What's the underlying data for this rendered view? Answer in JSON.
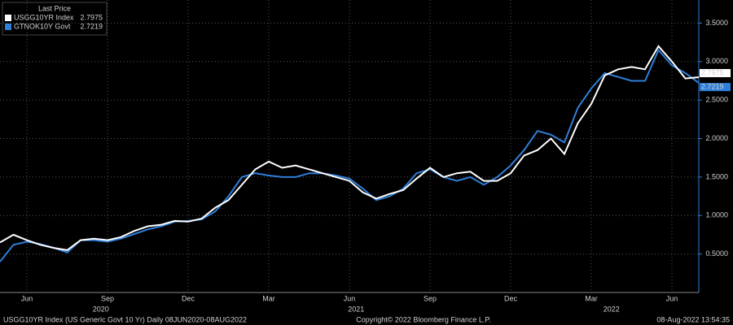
{
  "chart_data": {
    "type": "line",
    "legend_title": "Last Price",
    "categories": [
      null,
      null,
      "Jun",
      null,
      null,
      null,
      null,
      null,
      "Sep",
      null,
      null,
      null,
      null,
      null,
      "Dec",
      null,
      null,
      null,
      null,
      null,
      "Mar",
      null,
      null,
      null,
      null,
      null,
      "Jun",
      null,
      null,
      null,
      null,
      null,
      "Sep",
      null,
      null,
      null,
      null,
      null,
      "Dec",
      null,
      null,
      null,
      null,
      null,
      "Mar",
      null,
      null,
      null,
      null,
      null,
      "Jun",
      null,
      null
    ],
    "years": [
      "2020",
      "2021",
      "2022"
    ],
    "series": [
      {
        "name": "USGG10YR Index",
        "color": "#ffffff",
        "values": [
          0.65,
          0.75,
          0.68,
          0.62,
          0.58,
          0.55,
          0.68,
          0.7,
          0.68,
          0.72,
          0.8,
          0.86,
          0.88,
          0.93,
          0.92,
          0.96,
          1.1,
          1.2,
          1.4,
          1.6,
          1.7,
          1.62,
          1.65,
          1.6,
          1.55,
          1.5,
          1.45,
          1.3,
          1.22,
          1.28,
          1.33,
          1.48,
          1.62,
          1.5,
          1.55,
          1.57,
          1.45,
          1.45,
          1.55,
          1.78,
          1.85,
          2.0,
          1.8,
          2.2,
          2.45,
          2.82,
          2.9,
          2.93,
          2.9,
          3.2,
          3.0,
          2.78,
          2.7975
        ]
      },
      {
        "name": "GTNOK10Y Govt",
        "color": "#2e7fd9",
        "values": [
          0.4,
          0.62,
          0.66,
          0.63,
          0.58,
          0.52,
          0.68,
          0.68,
          0.66,
          0.7,
          0.76,
          0.82,
          0.86,
          0.92,
          0.93,
          0.95,
          1.05,
          1.25,
          1.5,
          1.55,
          1.52,
          1.5,
          1.5,
          1.55,
          1.55,
          1.52,
          1.48,
          1.35,
          1.2,
          1.25,
          1.35,
          1.55,
          1.6,
          1.5,
          1.45,
          1.5,
          1.4,
          1.5,
          1.65,
          1.85,
          2.1,
          2.05,
          1.95,
          2.4,
          2.65,
          2.85,
          2.8,
          2.75,
          2.75,
          3.15,
          2.95,
          2.85,
          2.7219
        ]
      }
    ],
    "ylim": [
      0,
      3.8
    ],
    "yticks": [
      {
        "value": 0.5,
        "label": "0.5000"
      },
      {
        "value": 1,
        "label": "1.0000"
      },
      {
        "value": 1.5,
        "label": "1.5000"
      },
      {
        "value": 2,
        "label": "2.0000"
      },
      {
        "value": 2.5,
        "label": "2.5000"
      },
      {
        "value": 3,
        "label": "3.0000"
      },
      {
        "value": 3.5,
        "label": "3.5000"
      }
    ],
    "grid": true,
    "footer_left": "USGG10YR Index (US Generic Govt 10 Yr)  Daily 08JUN2020-08AUG2022",
    "footer_center": "Copyright© 2022 Bloomberg Finance L.P.",
    "footer_right": "08-Aug-2022 13:54:35"
  }
}
